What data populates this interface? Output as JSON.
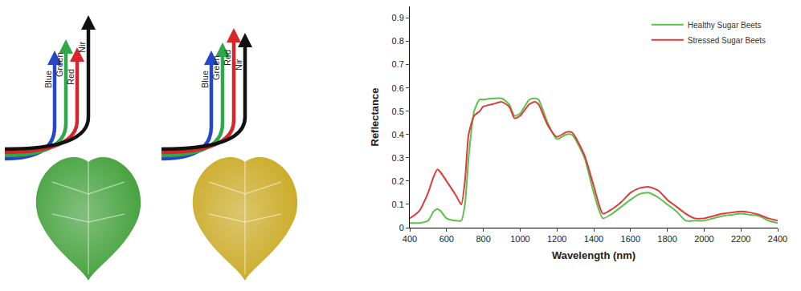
{
  "illustration": {
    "leaves": [
      {
        "fill": "#3e9e36",
        "arrows": [
          {
            "label": "Blue",
            "color": "#2747c9"
          },
          {
            "label": "Green",
            "color": "#2fa84a"
          },
          {
            "label": "Red",
            "color": "#d6262c"
          },
          {
            "label": "Nir",
            "color": "#111111"
          }
        ]
      },
      {
        "fill": "#c9a820",
        "arrows": [
          {
            "label": "Blue",
            "color": "#2747c9"
          },
          {
            "label": "Green",
            "color": "#2fa84a"
          },
          {
            "label": "Red",
            "color": "#d6262c"
          },
          {
            "label": "Nir",
            "color": "#111111"
          }
        ]
      }
    ]
  },
  "chart_data": {
    "type": "line",
    "x_label": "Wavelength (nm)",
    "y_label": "Reflectance",
    "x": [
      400,
      450,
      500,
      530,
      550,
      570,
      600,
      650,
      680,
      700,
      720,
      750,
      780,
      800,
      850,
      900,
      940,
      970,
      1000,
      1050,
      1080,
      1100,
      1150,
      1200,
      1250,
      1280,
      1300,
      1350,
      1400,
      1450,
      1500,
      1550,
      1600,
      1650,
      1700,
      1750,
      1800,
      1850,
      1900,
      1950,
      2000,
      2050,
      2100,
      2150,
      2200,
      2250,
      2300,
      2350,
      2400
    ],
    "series": [
      {
        "name": "Healthy Sugar Beets",
        "color": "#5cc04a",
        "values": [
          0.02,
          0.02,
          0.03,
          0.07,
          0.08,
          0.07,
          0.04,
          0.03,
          0.03,
          0.1,
          0.3,
          0.5,
          0.55,
          0.55,
          0.555,
          0.555,
          0.53,
          0.48,
          0.49,
          0.55,
          0.555,
          0.55,
          0.45,
          0.38,
          0.4,
          0.4,
          0.38,
          0.3,
          0.15,
          0.04,
          0.06,
          0.09,
          0.12,
          0.145,
          0.15,
          0.13,
          0.1,
          0.07,
          0.03,
          0.03,
          0.03,
          0.04,
          0.05,
          0.055,
          0.06,
          0.055,
          0.05,
          0.03,
          0.02
        ]
      },
      {
        "name": "Stressed Sugar Beets",
        "color": "#e0393a",
        "values": [
          0.04,
          0.07,
          0.15,
          0.22,
          0.25,
          0.235,
          0.2,
          0.14,
          0.1,
          0.2,
          0.4,
          0.48,
          0.5,
          0.52,
          0.53,
          0.54,
          0.52,
          0.47,
          0.48,
          0.53,
          0.54,
          0.53,
          0.44,
          0.39,
          0.41,
          0.41,
          0.39,
          0.31,
          0.18,
          0.06,
          0.08,
          0.11,
          0.15,
          0.17,
          0.175,
          0.16,
          0.12,
          0.09,
          0.06,
          0.04,
          0.04,
          0.05,
          0.06,
          0.065,
          0.07,
          0.065,
          0.055,
          0.04,
          0.03
        ]
      }
    ],
    "xlim": [
      400,
      2400
    ],
    "xticks": [
      400,
      600,
      800,
      1000,
      1200,
      1400,
      1600,
      1800,
      2000,
      2200,
      2400
    ],
    "ylim": [
      0,
      0.95
    ],
    "yticks": [
      0,
      0.1,
      0.2,
      0.3,
      0.4,
      0.5,
      0.6,
      0.7,
      0.8,
      0.9
    ],
    "grid": false,
    "legend": "top right"
  }
}
